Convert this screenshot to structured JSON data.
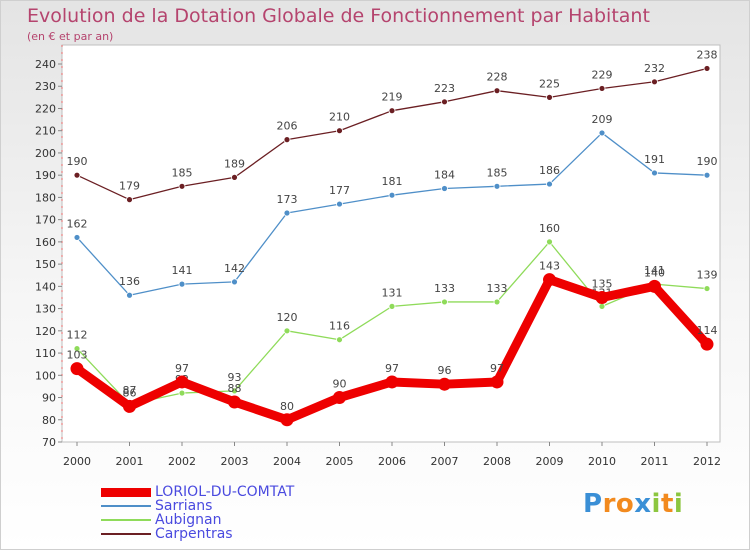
{
  "chart_data": {
    "type": "line",
    "title": "Evolution de la Dotation Globale de Fonctionnement par Habitant",
    "subtitle": "(en € et par an)",
    "xlabel": "",
    "ylabel": "",
    "categories": [
      "2000",
      "2001",
      "2002",
      "2003",
      "2004",
      "2005",
      "2006",
      "2007",
      "2008",
      "2009",
      "2010",
      "2011",
      "2012"
    ],
    "ylim": [
      70,
      240
    ],
    "yticks": [
      70,
      80,
      90,
      100,
      110,
      120,
      130,
      140,
      150,
      160,
      170,
      180,
      190,
      200,
      210,
      220,
      230,
      240
    ],
    "grid": false,
    "series": [
      {
        "name": "Carpentras",
        "color": "#6b1f23",
        "values": [
          190,
          179,
          185,
          189,
          206,
          210,
          219,
          223,
          228,
          225,
          229,
          232,
          238
        ]
      },
      {
        "name": "Sarrians",
        "color": "#4f8fc8",
        "values": [
          162,
          136,
          141,
          142,
          173,
          177,
          181,
          184,
          185,
          186,
          209,
          191,
          190
        ]
      },
      {
        "name": "Aubignan",
        "color": "#8fdb5a",
        "values": [
          112,
          87,
          92,
          93,
          120,
          116,
          131,
          133,
          133,
          160,
          131,
          141,
          139
        ]
      },
      {
        "name": "LORIOL-DU-COMTAT",
        "color": "#ee0000",
        "values": [
          103,
          86,
          97,
          88,
          80,
          90,
          97,
          96,
          97,
          143,
          135,
          140,
          114
        ]
      }
    ],
    "legend": [
      {
        "name": "LORIOL-DU-COMTAT",
        "color": "#ee0000"
      },
      {
        "name": "Sarrians",
        "color": "#4f8fc8"
      },
      {
        "name": "Aubignan",
        "color": "#8fdb5a"
      },
      {
        "name": "Carpentras",
        "color": "#6b1f23"
      }
    ],
    "legend_position": "bottom-left"
  },
  "logo": {
    "text": "Proxiti",
    "letters": [
      {
        "ch": "P",
        "color": "#3a8fd6"
      },
      {
        "ch": "r",
        "color": "#f28a1e"
      },
      {
        "ch": "o",
        "color": "#f28a1e"
      },
      {
        "ch": "x",
        "color": "#3a8fd6"
      },
      {
        "ch": "i",
        "color": "#8cc63f"
      },
      {
        "ch": "t",
        "color": "#f28a1e"
      },
      {
        "ch": "i",
        "color": "#8cc63f"
      }
    ]
  }
}
